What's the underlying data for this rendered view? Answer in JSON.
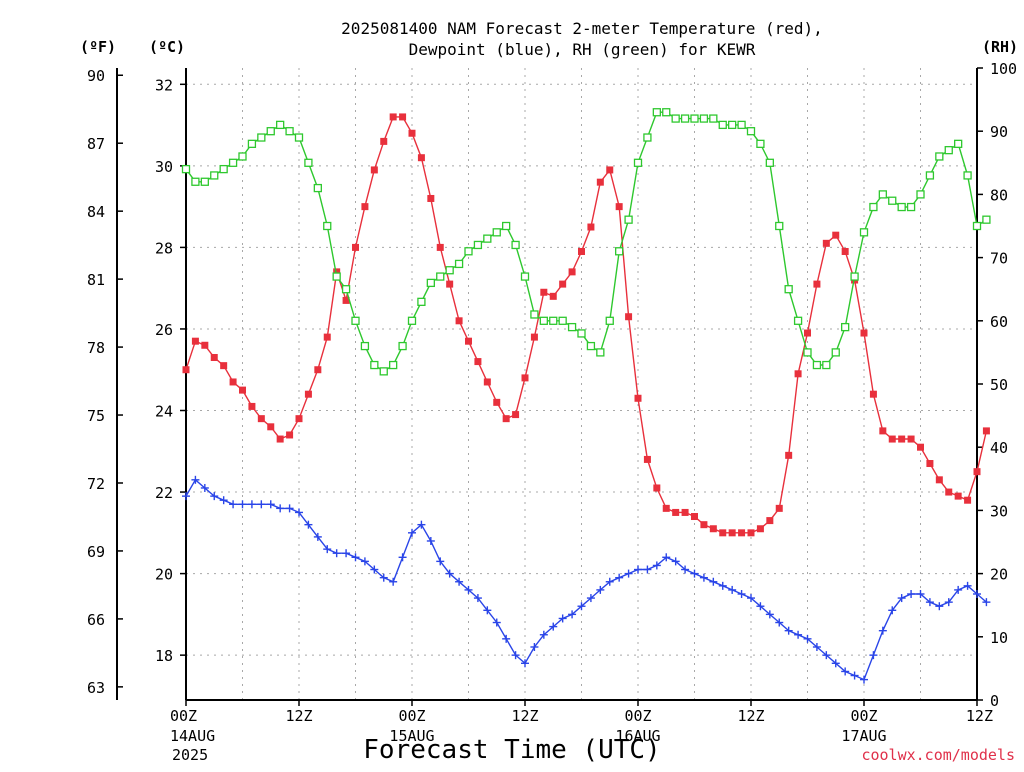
{
  "chart_data": {
    "type": "line",
    "title": "2025081400 NAM Forecast 2-meter Temperature (red),",
    "subtitle": "Dewpoint (blue), RH (green) for KEWR",
    "xlabel": "Forecast Time (UTC)",
    "units": {
      "fahrenheit": "(ºF)",
      "celsius": "(ºC)",
      "rh": "(RH)"
    },
    "credit": "coolwx.com/models",
    "x_hours_range": [
      0,
      84
    ],
    "x_ticks": [
      {
        "hour": 0,
        "label": "00Z",
        "date": "14AUG",
        "year": "2025"
      },
      {
        "hour": 12,
        "label": "12Z",
        "date": "",
        "year": ""
      },
      {
        "hour": 24,
        "label": "00Z",
        "date": "15AUG",
        "year": ""
      },
      {
        "hour": 36,
        "label": "12Z",
        "date": "",
        "year": ""
      },
      {
        "hour": 48,
        "label": "00Z",
        "date": "16AUG",
        "year": ""
      },
      {
        "hour": 60,
        "label": "12Z",
        "date": "",
        "year": ""
      },
      {
        "hour": 72,
        "label": "00Z",
        "date": "17AUG",
        "year": ""
      },
      {
        "hour": 84,
        "label": "12Z",
        "date": "",
        "year": ""
      }
    ],
    "celsius_axis": {
      "range": [
        16.9,
        32.4
      ],
      "ticks": [
        18,
        20,
        22,
        24,
        26,
        28,
        30,
        32
      ]
    },
    "fahrenheit_ticks": [
      63,
      66,
      69,
      72,
      75,
      78,
      81,
      84,
      87,
      90
    ],
    "rh_axis": {
      "range": [
        0,
        100
      ],
      "ticks": [
        0,
        10,
        20,
        30,
        40,
        50,
        60,
        70,
        80,
        90,
        100
      ]
    },
    "grid": true,
    "series": [
      {
        "name": "Temperature",
        "axis": "celsius",
        "color": "#e8303c",
        "marker": "filled-square",
        "values": [
          25.0,
          25.7,
          25.6,
          25.3,
          25.1,
          24.7,
          24.5,
          24.1,
          23.8,
          23.6,
          23.3,
          23.4,
          23.8,
          24.4,
          25.0,
          25.8,
          27.4,
          26.7,
          28.0,
          29.0,
          29.9,
          30.6,
          31.2,
          31.2,
          30.8,
          30.2,
          29.2,
          28.0,
          27.1,
          26.2,
          25.7,
          25.2,
          24.7,
          24.2,
          23.8,
          23.9,
          24.8,
          25.8,
          26.9,
          26.8,
          27.1,
          27.4,
          27.9,
          28.5,
          29.6,
          29.9,
          29.0,
          26.3,
          24.3,
          22.8,
          22.1,
          21.6,
          21.5,
          21.5,
          21.4,
          21.2,
          21.1,
          21.0,
          21.0,
          21.0,
          21.0,
          21.1,
          21.3,
          21.6,
          22.9,
          24.9,
          25.9,
          27.1,
          28.1,
          28.3,
          27.9,
          27.2,
          25.9,
          24.4,
          23.5,
          23.3,
          23.3,
          23.3,
          23.1,
          22.7,
          22.3,
          22.0,
          21.9,
          21.8,
          22.5,
          23.5
        ]
      },
      {
        "name": "Dewpoint",
        "axis": "celsius",
        "color": "#2a45e8",
        "marker": "plus",
        "values": [
          21.9,
          22.3,
          22.1,
          21.9,
          21.8,
          21.7,
          21.7,
          21.7,
          21.7,
          21.7,
          21.6,
          21.6,
          21.5,
          21.2,
          20.9,
          20.6,
          20.5,
          20.5,
          20.4,
          20.3,
          20.1,
          19.9,
          19.8,
          20.4,
          21.0,
          21.2,
          20.8,
          20.3,
          20.0,
          19.8,
          19.6,
          19.4,
          19.1,
          18.8,
          18.4,
          18.0,
          17.8,
          18.2,
          18.5,
          18.7,
          18.9,
          19.0,
          19.2,
          19.4,
          19.6,
          19.8,
          19.9,
          20.0,
          20.1,
          20.1,
          20.2,
          20.4,
          20.3,
          20.1,
          20.0,
          19.9,
          19.8,
          19.7,
          19.6,
          19.5,
          19.4,
          19.2,
          19.0,
          18.8,
          18.6,
          18.5,
          18.4,
          18.2,
          18.0,
          17.8,
          17.6,
          17.5,
          17.4,
          18.0,
          18.6,
          19.1,
          19.4,
          19.5,
          19.5,
          19.3,
          19.2,
          19.3,
          19.6,
          19.7,
          19.5,
          19.3
        ]
      },
      {
        "name": "RH",
        "axis": "rh",
        "color": "#2ec82e",
        "marker": "open-square",
        "values": [
          84,
          82,
          82,
          83,
          84,
          85,
          86,
          88,
          89,
          90,
          91,
          90,
          89,
          85,
          81,
          75,
          67,
          65,
          60,
          56,
          53,
          52,
          53,
          56,
          60,
          63,
          66,
          67,
          68,
          69,
          71,
          72,
          73,
          74,
          75,
          72,
          67,
          61,
          60,
          60,
          60,
          59,
          58,
          56,
          55,
          60,
          71,
          76,
          85,
          89,
          93,
          93,
          92,
          92,
          92,
          92,
          92,
          91,
          91,
          91,
          90,
          88,
          85,
          75,
          65,
          60,
          55,
          53,
          53,
          55,
          59,
          67,
          74,
          78,
          80,
          79,
          78,
          78,
          80,
          83,
          86,
          87,
          88,
          83,
          75,
          76
        ]
      }
    ]
  }
}
